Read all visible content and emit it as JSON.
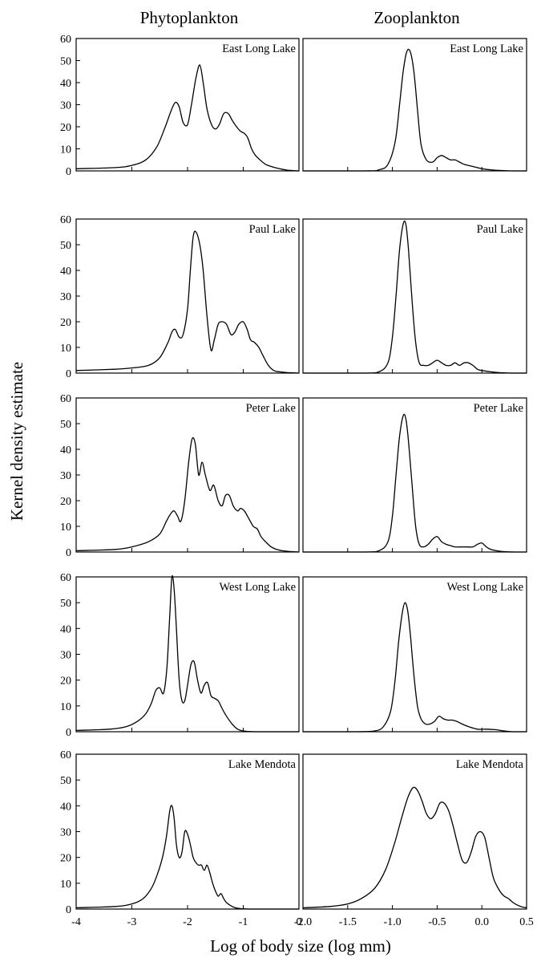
{
  "figure": {
    "column_titles": [
      "Phytoplankton",
      "Zooplankton"
    ],
    "ylabel": "Kernel density estimate",
    "xlabel": "Log of body size (log mm)"
  },
  "chart_data": [
    {
      "type": "line",
      "panel": "East Long Lake",
      "column": "Phytoplankton",
      "xlim": [
        -4,
        0
      ],
      "ylim": [
        0,
        60
      ],
      "xticks": [
        "-4",
        "-3",
        "-2",
        "-1",
        "0"
      ],
      "yticks": [
        "0",
        "10",
        "20",
        "30",
        "40",
        "50",
        "60"
      ],
      "series": [
        {
          "x": [
            -4.0,
            -3.3,
            -3.0,
            -2.75,
            -2.55,
            -2.4,
            -2.3,
            -2.22,
            -2.15,
            -2.08,
            -2.0,
            -1.93,
            -1.85,
            -1.78,
            -1.72,
            -1.65,
            -1.57,
            -1.5,
            -1.43,
            -1.35,
            -1.27,
            -1.2,
            -1.12,
            -1.05,
            -0.98,
            -0.92,
            -0.85,
            -0.78,
            -0.7,
            -0.6,
            -0.5,
            -0.35,
            -0.2,
            0.0
          ],
          "y": [
            1,
            1.5,
            2.5,
            5,
            11,
            20,
            27,
            31,
            29,
            22,
            21,
            30,
            42,
            48,
            40,
            28,
            21,
            19,
            21,
            26,
            26,
            23,
            20,
            18,
            17,
            15,
            10,
            7,
            5,
            3,
            2,
            1,
            0.3,
            0
          ]
        }
      ]
    },
    {
      "type": "line",
      "panel": "East Long Lake",
      "column": "Zooplankton",
      "xlim": [
        -2.0,
        0.5
      ],
      "ylim": [
        0,
        60
      ],
      "xticks": [
        "-2.0",
        "-1.5",
        "-1.0",
        "-0.5",
        "0.0",
        "0.5"
      ],
      "series": [
        {
          "x": [
            -2.0,
            -1.3,
            -1.15,
            -1.05,
            -0.97,
            -0.92,
            -0.88,
            -0.84,
            -0.8,
            -0.76,
            -0.72,
            -0.68,
            -0.62,
            -0.55,
            -0.5,
            -0.45,
            -0.4,
            -0.35,
            -0.3,
            -0.25,
            -0.2,
            -0.1,
            0.0,
            0.1,
            0.2,
            0.35,
            0.5
          ],
          "y": [
            0,
            0,
            0.5,
            3,
            13,
            30,
            45,
            54,
            54,
            45,
            28,
            12,
            5,
            4,
            6,
            7,
            6,
            5,
            5,
            4,
            3,
            2,
            1,
            0.5,
            0.2,
            0,
            0
          ]
        }
      ]
    },
    {
      "type": "line",
      "panel": "Paul Lake",
      "column": "Phytoplankton",
      "xlim": [
        -4,
        0
      ],
      "ylim": [
        0,
        60
      ],
      "xticks": [
        "-4",
        "-3",
        "-2",
        "-1",
        "0"
      ],
      "yticks": [
        "0",
        "10",
        "20",
        "30",
        "40",
        "50",
        "60"
      ],
      "series": [
        {
          "x": [
            -4.0,
            -3.3,
            -3.0,
            -2.7,
            -2.5,
            -2.35,
            -2.28,
            -2.22,
            -2.15,
            -2.08,
            -2.0,
            -1.95,
            -1.9,
            -1.85,
            -1.78,
            -1.72,
            -1.65,
            -1.58,
            -1.52,
            -1.45,
            -1.38,
            -1.3,
            -1.22,
            -1.15,
            -1.08,
            -1.0,
            -0.93,
            -0.87,
            -0.8,
            -0.72,
            -0.65,
            -0.55,
            -0.45,
            -0.35,
            -0.2,
            0.0
          ],
          "y": [
            1,
            1.5,
            2,
            3,
            6,
            12,
            16,
            17,
            14,
            15,
            25,
            40,
            53,
            55,
            50,
            40,
            22,
            9,
            13,
            19,
            20,
            19,
            15,
            16,
            19,
            20,
            17,
            13,
            12,
            10,
            7,
            3,
            1,
            0.5,
            0.2,
            0
          ]
        }
      ]
    },
    {
      "type": "line",
      "panel": "Paul Lake",
      "column": "Zooplankton",
      "xlim": [
        -2.0,
        0.5
      ],
      "ylim": [
        0,
        60
      ],
      "xticks": [
        "-2.0",
        "-1.5",
        "-1.0",
        "-0.5",
        "0.0",
        "0.5"
      ],
      "series": [
        {
          "x": [
            -2.0,
            -1.3,
            -1.15,
            -1.05,
            -1.0,
            -0.96,
            -0.92,
            -0.88,
            -0.85,
            -0.82,
            -0.78,
            -0.74,
            -0.7,
            -0.65,
            -0.6,
            -0.55,
            -0.5,
            -0.45,
            -0.4,
            -0.35,
            -0.3,
            -0.25,
            -0.2,
            -0.15,
            -0.1,
            -0.05,
            0.0,
            0.1,
            0.2,
            0.35,
            0.5
          ],
          "y": [
            0,
            0,
            0.5,
            4,
            14,
            30,
            48,
            58,
            58,
            48,
            28,
            12,
            4,
            3,
            3,
            4,
            5,
            4,
            3,
            3,
            4,
            3,
            4,
            4,
            3,
            1.5,
            1,
            0.5,
            0.2,
            0,
            0
          ]
        }
      ]
    },
    {
      "type": "line",
      "panel": "Peter Lake",
      "column": "Phytoplankton",
      "xlim": [
        -4,
        0
      ],
      "ylim": [
        0,
        60
      ],
      "xticks": [
        "-4",
        "-3",
        "-2",
        "-1",
        "0"
      ],
      "yticks": [
        "0",
        "10",
        "20",
        "30",
        "40",
        "50",
        "60"
      ],
      "series": [
        {
          "x": [
            -4.0,
            -3.3,
            -3.0,
            -2.7,
            -2.5,
            -2.38,
            -2.3,
            -2.24,
            -2.18,
            -2.12,
            -2.05,
            -1.98,
            -1.92,
            -1.86,
            -1.8,
            -1.74,
            -1.68,
            -1.6,
            -1.53,
            -1.45,
            -1.38,
            -1.32,
            -1.25,
            -1.18,
            -1.1,
            -1.05,
            -0.98,
            -0.9,
            -0.82,
            -0.75,
            -0.68,
            -0.6,
            -0.5,
            -0.4,
            -0.3,
            -0.15,
            0.0
          ],
          "y": [
            0.5,
            1,
            2,
            4,
            7,
            12,
            15,
            16,
            14,
            12,
            20,
            35,
            44,
            42,
            30,
            35,
            30,
            24,
            26,
            20,
            18,
            22,
            22,
            18,
            16,
            17,
            16,
            13,
            10,
            9,
            6,
            4,
            2,
            1,
            0.5,
            0.2,
            0
          ]
        }
      ]
    },
    {
      "type": "line",
      "panel": "Peter Lake",
      "column": "Zooplankton",
      "xlim": [
        -2.0,
        0.5
      ],
      "ylim": [
        0,
        60
      ],
      "xticks": [
        "-2.0",
        "-1.5",
        "-1.0",
        "-0.5",
        "0.0",
        "0.5"
      ],
      "series": [
        {
          "x": [
            -2.0,
            -1.3,
            -1.15,
            -1.05,
            -1.0,
            -0.96,
            -0.92,
            -0.88,
            -0.85,
            -0.82,
            -0.78,
            -0.74,
            -0.7,
            -0.65,
            -0.6,
            -0.55,
            -0.5,
            -0.45,
            -0.4,
            -0.35,
            -0.3,
            -0.2,
            -0.1,
            -0.05,
            0.0,
            0.05,
            0.1,
            0.2,
            0.35,
            0.5
          ],
          "y": [
            0,
            0,
            0.5,
            4,
            14,
            30,
            45,
            53,
            52,
            43,
            26,
            10,
            3,
            2,
            3,
            5,
            6,
            4,
            3,
            2.5,
            2,
            2,
            2,
            3,
            3.5,
            2,
            1,
            0.3,
            0,
            0
          ]
        }
      ]
    },
    {
      "type": "line",
      "panel": "West Long Lake",
      "column": "Phytoplankton",
      "xlim": [
        -4,
        0
      ],
      "ylim": [
        0,
        60
      ],
      "xticks": [
        "-4",
        "-3",
        "-2",
        "-1",
        "0"
      ],
      "yticks": [
        "0",
        "10",
        "20",
        "30",
        "40",
        "50",
        "60"
      ],
      "series": [
        {
          "x": [
            -4.0,
            -3.4,
            -3.1,
            -2.9,
            -2.75,
            -2.65,
            -2.57,
            -2.5,
            -2.43,
            -2.37,
            -2.32,
            -2.28,
            -2.24,
            -2.2,
            -2.15,
            -2.1,
            -2.05,
            -2.0,
            -1.94,
            -1.88,
            -1.82,
            -1.76,
            -1.7,
            -1.64,
            -1.58,
            -1.52,
            -1.45,
            -1.38,
            -1.3,
            -1.2,
            -1.1,
            -1.0,
            -0.8,
            -0.5,
            0.0
          ],
          "y": [
            0.5,
            1,
            2,
            4,
            7,
            11,
            16,
            17,
            15,
            25,
            45,
            60,
            55,
            40,
            20,
            12,
            12,
            18,
            26,
            27,
            20,
            15,
            18,
            19,
            14,
            13,
            12,
            9,
            6,
            3,
            1,
            0.3,
            0,
            0,
            0
          ]
        }
      ]
    },
    {
      "type": "line",
      "panel": "West Long Lake",
      "column": "Zooplankton",
      "xlim": [
        -2.0,
        0.5
      ],
      "ylim": [
        0,
        60
      ],
      "xticks": [
        "-2.0",
        "-1.5",
        "-1.0",
        "-0.5",
        "0.0",
        "0.5"
      ],
      "series": [
        {
          "x": [
            -2.0,
            -1.4,
            -1.2,
            -1.1,
            -1.02,
            -0.97,
            -0.93,
            -0.89,
            -0.86,
            -0.83,
            -0.8,
            -0.76,
            -0.72,
            -0.68,
            -0.63,
            -0.58,
            -0.53,
            -0.48,
            -0.43,
            -0.38,
            -0.33,
            -0.28,
            -0.22,
            -0.15,
            -0.05,
            0.05,
            0.15,
            0.25,
            0.35,
            0.5
          ],
          "y": [
            0,
            0,
            0.3,
            2,
            8,
            20,
            35,
            46,
            50,
            47,
            38,
            22,
            10,
            5,
            3,
            3,
            4,
            6,
            5,
            4.5,
            4.5,
            4,
            3,
            2,
            1,
            1,
            0.8,
            0.3,
            0,
            0
          ]
        }
      ]
    },
    {
      "type": "line",
      "panel": "Lake Mendota",
      "column": "Phytoplankton",
      "xlim": [
        -4,
        0
      ],
      "ylim": [
        0,
        60
      ],
      "xticks": [
        "-4",
        "-3",
        "-2",
        "-1",
        "0"
      ],
      "yticks": [
        "0",
        "10",
        "20",
        "30",
        "40",
        "50",
        "60"
      ],
      "series": [
        {
          "x": [
            -4.0,
            -3.3,
            -3.0,
            -2.8,
            -2.65,
            -2.55,
            -2.45,
            -2.38,
            -2.32,
            -2.28,
            -2.24,
            -2.2,
            -2.15,
            -2.1,
            -2.05,
            -2.0,
            -1.95,
            -1.9,
            -1.85,
            -1.8,
            -1.75,
            -1.7,
            -1.65,
            -1.6,
            -1.55,
            -1.5,
            -1.45,
            -1.4,
            -1.35,
            -1.3,
            -1.2,
            -1.1,
            -0.9,
            -0.6,
            0.0
          ],
          "y": [
            0.5,
            1,
            2,
            4,
            8,
            13,
            20,
            28,
            38,
            40,
            35,
            25,
            20,
            22,
            30,
            29,
            25,
            20,
            18,
            17,
            17,
            15,
            17,
            14,
            10,
            7,
            5,
            6,
            4,
            2.5,
            1,
            0.3,
            0,
            0,
            0
          ]
        }
      ]
    },
    {
      "type": "line",
      "panel": "Lake Mendota",
      "column": "Zooplankton",
      "xlim": [
        -2.0,
        0.5
      ],
      "ylim": [
        0,
        60
      ],
      "xticks": [
        "-2.0",
        "-1.5",
        "-1.0",
        "-0.5",
        "0.0",
        "0.5"
      ],
      "series": [
        {
          "x": [
            -2.0,
            -1.7,
            -1.5,
            -1.35,
            -1.2,
            -1.08,
            -0.98,
            -0.9,
            -0.83,
            -0.77,
            -0.72,
            -0.67,
            -0.62,
            -0.57,
            -0.52,
            -0.47,
            -0.42,
            -0.37,
            -0.32,
            -0.27,
            -0.22,
            -0.17,
            -0.12,
            -0.07,
            -0.02,
            0.03,
            0.08,
            0.13,
            0.2,
            0.25,
            0.3,
            0.35,
            0.4,
            0.45,
            0.5
          ],
          "y": [
            0.5,
            1,
            2,
            4,
            8,
            15,
            25,
            35,
            43,
            47,
            46,
            42,
            37,
            35,
            37,
            41,
            41,
            38,
            32,
            25,
            19,
            18,
            22,
            28,
            30,
            28,
            20,
            12,
            7,
            5,
            4,
            2.5,
            1.5,
            0.8,
            0.5
          ]
        }
      ]
    }
  ]
}
